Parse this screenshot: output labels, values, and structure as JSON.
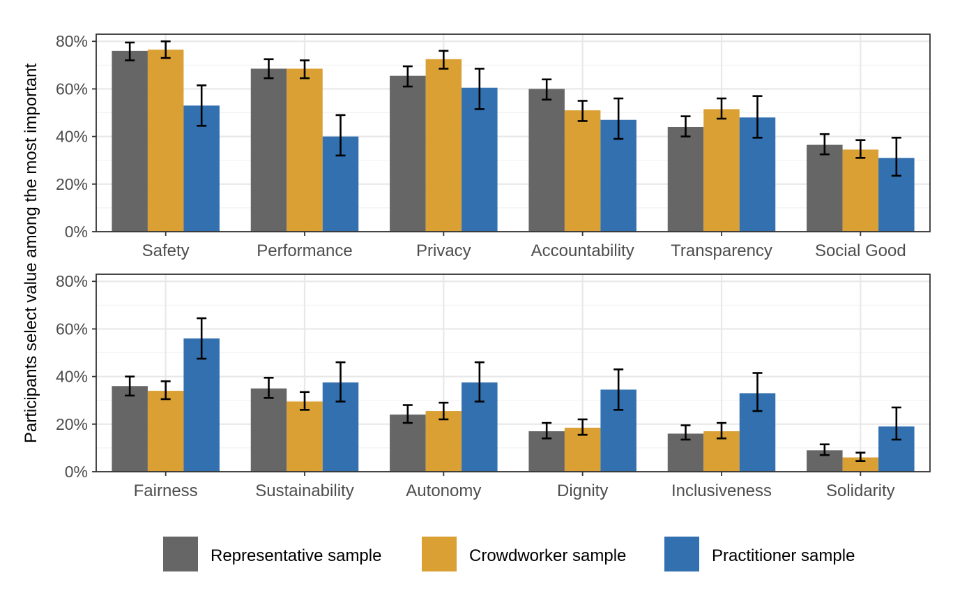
{
  "chart_data": {
    "type": "bar",
    "ylabel": "Participants select value among the most important",
    "ylim": [
      0,
      0.83
    ],
    "yticks": [
      0,
      0.2,
      0.4,
      0.6,
      0.8
    ],
    "ytick_labels": [
      "0%",
      "20%",
      "40%",
      "60%",
      "80%"
    ],
    "grid": true,
    "legend_position": "bottom",
    "series_names": [
      "Representative sample",
      "Crowdworker sample",
      "Practitioner sample"
    ],
    "colors": {
      "Representative sample": "#666666",
      "Crowdworker sample": "#daa033",
      "Practitioner sample": "#3270b0"
    },
    "panels": [
      {
        "categories": [
          "Safety",
          "Performance",
          "Privacy",
          "Accountability",
          "Transparency",
          "Social Good"
        ],
        "series": [
          {
            "name": "Representative sample",
            "values": [
              0.76,
              0.685,
              0.655,
              0.6,
              0.44,
              0.365
            ],
            "err_low": [
              0.72,
              0.645,
              0.61,
              0.555,
              0.4,
              0.325
            ],
            "err_high": [
              0.795,
              0.725,
              0.695,
              0.64,
              0.485,
              0.41
            ]
          },
          {
            "name": "Crowdworker sample",
            "values": [
              0.765,
              0.685,
              0.725,
              0.51,
              0.515,
              0.345
            ],
            "err_low": [
              0.73,
              0.645,
              0.685,
              0.465,
              0.475,
              0.31
            ],
            "err_high": [
              0.8,
              0.72,
              0.76,
              0.55,
              0.56,
              0.385
            ]
          },
          {
            "name": "Practitioner sample",
            "values": [
              0.53,
              0.4,
              0.605,
              0.47,
              0.48,
              0.31
            ],
            "err_low": [
              0.445,
              0.32,
              0.515,
              0.39,
              0.395,
              0.235
            ],
            "err_high": [
              0.615,
              0.49,
              0.685,
              0.56,
              0.57,
              0.395
            ]
          }
        ]
      },
      {
        "categories": [
          "Fairness",
          "Sustainability",
          "Autonomy",
          "Dignity",
          "Inclusiveness",
          "Solidarity"
        ],
        "series": [
          {
            "name": "Representative sample",
            "values": [
              0.36,
              0.35,
              0.24,
              0.17,
              0.16,
              0.09
            ],
            "err_low": [
              0.32,
              0.31,
              0.205,
              0.14,
              0.135,
              0.07
            ],
            "err_high": [
              0.4,
              0.395,
              0.28,
              0.205,
              0.195,
              0.115
            ]
          },
          {
            "name": "Crowdworker sample",
            "values": [
              0.34,
              0.295,
              0.255,
              0.185,
              0.17,
              0.06
            ],
            "err_low": [
              0.305,
              0.26,
              0.22,
              0.155,
              0.14,
              0.045
            ],
            "err_high": [
              0.38,
              0.335,
              0.29,
              0.22,
              0.205,
              0.08
            ]
          },
          {
            "name": "Practitioner sample",
            "values": [
              0.56,
              0.375,
              0.375,
              0.345,
              0.33,
              0.19
            ],
            "err_low": [
              0.475,
              0.295,
              0.295,
              0.26,
              0.255,
              0.135
            ],
            "err_high": [
              0.645,
              0.46,
              0.46,
              0.43,
              0.415,
              0.27
            ]
          }
        ]
      }
    ]
  }
}
